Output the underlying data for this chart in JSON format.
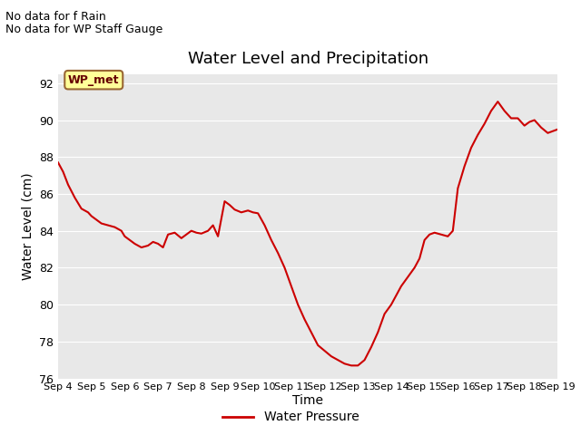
{
  "title": "Water Level and Precipitation",
  "xlabel": "Time",
  "ylabel": "Water Level (cm)",
  "ylim": [
    76,
    92.5
  ],
  "xlim": [
    0,
    15
  ],
  "bg_color": "#e8e8e8",
  "line_color": "#cc0000",
  "legend_label": "Water Pressure",
  "text_no_data_rain": "No data for f Rain",
  "text_no_data_wp": "No data for WP Staff Gauge",
  "legend_box_label": "WP_met",
  "legend_box_bg": "#ffff99",
  "legend_box_border": "#996633",
  "xtick_labels": [
    "Sep 4",
    "Sep 5",
    "Sep 6",
    "Sep 7",
    "Sep 8",
    "Sep 9",
    "Sep 10",
    "Sep 11",
    "Sep 12",
    "Sep 13",
    "Sep 14",
    "Sep 15",
    "Sep 16",
    "Sep 17",
    "Sep 18",
    "Sep 19"
  ],
  "ytick_values": [
    76,
    78,
    80,
    82,
    84,
    86,
    88,
    90,
    92
  ],
  "x": [
    0.0,
    0.15,
    0.3,
    0.5,
    0.7,
    0.9,
    1.0,
    1.15,
    1.3,
    1.5,
    1.7,
    1.9,
    2.0,
    2.15,
    2.3,
    2.5,
    2.7,
    2.85,
    3.0,
    3.15,
    3.3,
    3.5,
    3.7,
    3.85,
    4.0,
    4.15,
    4.3,
    4.5,
    4.65,
    4.8,
    5.0,
    5.15,
    5.3,
    5.5,
    5.7,
    5.85,
    6.0,
    6.2,
    6.4,
    6.6,
    6.8,
    7.0,
    7.2,
    7.4,
    7.6,
    7.8,
    8.0,
    8.2,
    8.4,
    8.6,
    8.8,
    9.0,
    9.2,
    9.4,
    9.6,
    9.8,
    10.0,
    10.15,
    10.3,
    10.5,
    10.7,
    10.85,
    11.0,
    11.15,
    11.3,
    11.5,
    11.7,
    11.85,
    12.0,
    12.2,
    12.4,
    12.6,
    12.8,
    13.0,
    13.2,
    13.4,
    13.6,
    13.8,
    14.0,
    14.15,
    14.3,
    14.5,
    14.7,
    14.85,
    15.0
  ],
  "y": [
    87.7,
    87.2,
    86.5,
    85.8,
    85.2,
    85.0,
    84.8,
    84.6,
    84.4,
    84.3,
    84.2,
    84.0,
    83.7,
    83.5,
    83.3,
    83.1,
    83.2,
    83.4,
    83.3,
    83.1,
    83.8,
    83.9,
    83.6,
    83.8,
    84.0,
    83.9,
    83.85,
    84.0,
    84.3,
    83.7,
    85.6,
    85.4,
    85.15,
    85.0,
    85.1,
    85.0,
    84.95,
    84.3,
    83.5,
    82.8,
    82.0,
    81.0,
    80.0,
    79.2,
    78.5,
    77.8,
    77.5,
    77.2,
    77.0,
    76.8,
    76.7,
    76.7,
    77.0,
    77.7,
    78.5,
    79.5,
    80.0,
    80.5,
    81.0,
    81.5,
    82.0,
    82.5,
    83.5,
    83.8,
    83.9,
    83.8,
    83.7,
    84.0,
    86.3,
    87.5,
    88.5,
    89.2,
    89.8,
    90.5,
    91.0,
    90.5,
    90.1,
    90.1,
    89.7,
    89.9,
    90.0,
    89.6,
    89.3,
    89.4,
    89.5
  ]
}
